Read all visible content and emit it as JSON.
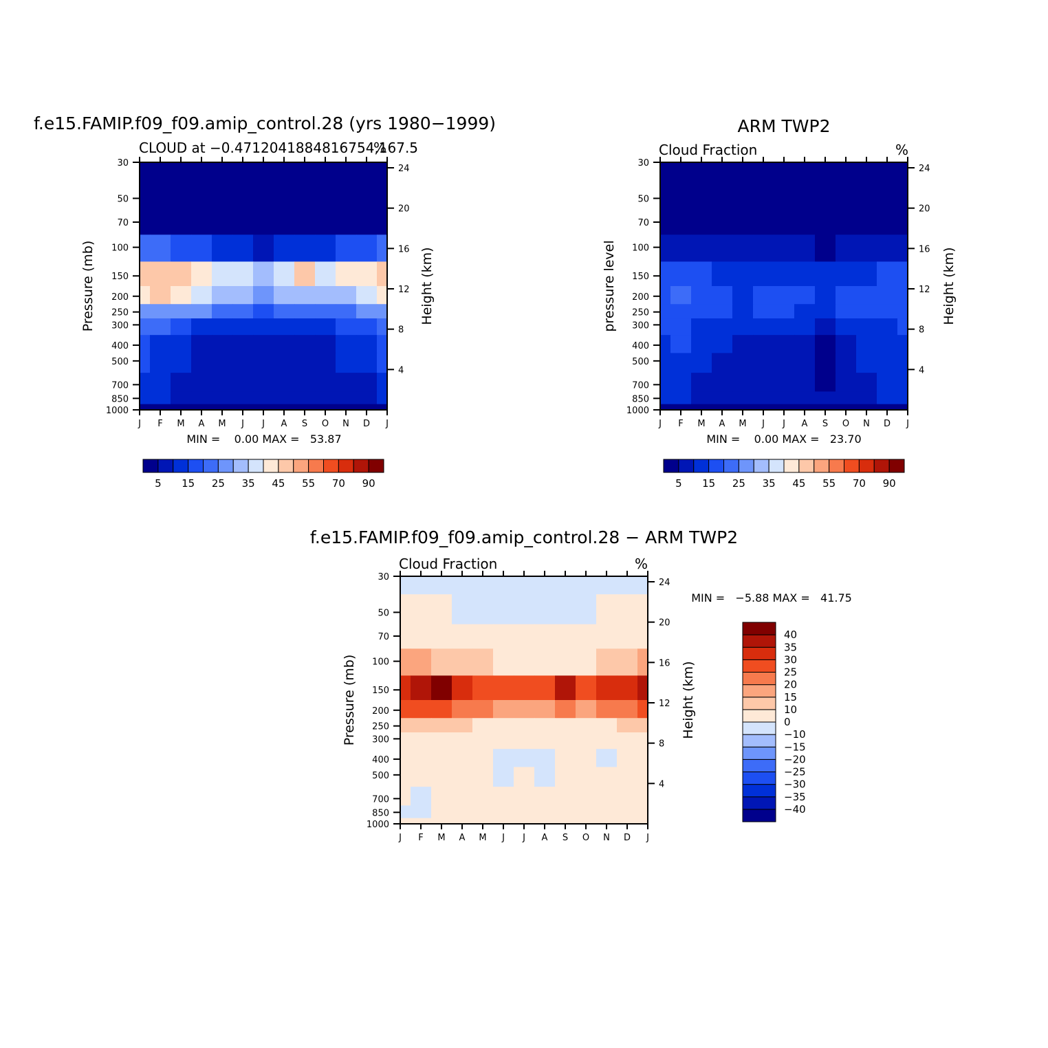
{
  "chart_data": [
    {
      "type": "heatmap",
      "title": "f.e15.FAMIP.f09_f09.amip_control.28 (yrs 1980−1999)",
      "left_string": "CLOUD at −0.4712041884816754,167.5",
      "right_string": "%",
      "ylabel": "Pressure (mb)",
      "ylabel_right": "Height (km)",
      "x_ticks": [
        "J",
        "F",
        "M",
        "A",
        "M",
        "J",
        "J",
        "A",
        "S",
        "O",
        "N",
        "D",
        "J"
      ],
      "y_ticks": [
        "30",
        "50",
        "70",
        "100",
        "150",
        "200",
        "250",
        "300",
        "400",
        "500",
        "700",
        "850",
        "1000"
      ],
      "y_ticks_right": [
        "24",
        "20",
        "16",
        "12",
        "8",
        "4"
      ],
      "min_max_text": "MIN =    0.00 MAX =   53.87",
      "levels": [
        5,
        10,
        15,
        20,
        25,
        30,
        35,
        40,
        45,
        50,
        55,
        60,
        70,
        80,
        90
      ],
      "colorbar_labels": [
        "5",
        "15",
        "25",
        "35",
        "45",
        "55",
        "70",
        "90"
      ],
      "x": [
        0,
        1,
        2,
        3,
        4,
        5,
        6,
        7,
        8,
        9,
        10,
        11,
        12
      ],
      "y": [
        30,
        50,
        70,
        100,
        150,
        200,
        250,
        300,
        400,
        500,
        700,
        850,
        1000
      ],
      "z": [
        [
          1,
          1,
          1,
          1,
          1,
          1,
          1,
          1,
          1,
          1,
          1,
          1,
          1
        ],
        [
          1,
          1,
          1,
          1,
          1,
          1,
          1,
          1,
          1,
          1,
          1,
          1,
          1
        ],
        [
          3,
          3,
          3,
          3,
          2,
          2,
          2,
          2,
          2,
          2,
          2,
          3,
          3
        ],
        [
          20,
          20,
          18,
          15,
          12,
          10,
          9,
          10,
          10,
          12,
          15,
          18,
          20
        ],
        [
          48,
          48,
          45,
          42,
          38,
          35,
          30,
          35,
          45,
          38,
          40,
          40,
          48
        ],
        [
          44,
          45,
          42,
          38,
          34,
          30,
          28,
          30,
          32,
          30,
          34,
          38,
          44
        ],
        [
          28,
          28,
          27,
          25,
          22,
          20,
          18,
          20,
          20,
          22,
          24,
          26,
          28
        ],
        [
          20,
          20,
          18,
          14,
          12,
          11,
          10,
          11,
          11,
          12,
          16,
          18,
          20
        ],
        [
          15,
          14,
          13,
          9,
          5,
          5,
          5,
          5,
          5,
          6,
          10,
          13,
          15
        ],
        [
          15,
          14,
          13,
          9,
          5,
          5,
          5,
          5,
          5,
          6,
          10,
          13,
          15
        ],
        [
          10,
          10,
          9,
          8,
          5,
          5,
          5,
          5,
          5,
          6,
          8,
          9,
          10
        ],
        [
          10,
          10,
          9,
          8,
          6,
          6,
          6,
          6,
          6,
          7,
          8,
          9,
          10
        ],
        [
          2,
          2,
          2,
          2,
          2,
          2,
          2,
          2,
          2,
          2,
          2,
          2,
          2
        ]
      ]
    },
    {
      "type": "heatmap",
      "title": "ARM TWP2",
      "left_string": "Cloud Fraction",
      "right_string": "%",
      "ylabel": "pressure level",
      "ylabel_right": "Height (km)",
      "x_ticks": [
        "J",
        "F",
        "M",
        "A",
        "M",
        "J",
        "J",
        "A",
        "S",
        "O",
        "N",
        "D",
        "J"
      ],
      "y_ticks": [
        "30",
        "50",
        "70",
        "100",
        "150",
        "200",
        "250",
        "300",
        "400",
        "500",
        "700",
        "850",
        "1000"
      ],
      "y_ticks_right": [
        "24",
        "20",
        "16",
        "12",
        "8",
        "4"
      ],
      "min_max_text": "MIN =    0.00 MAX =   23.70",
      "levels": [
        5,
        10,
        15,
        20,
        25,
        30,
        35,
        40,
        45,
        50,
        55,
        60,
        70,
        80,
        90
      ],
      "colorbar_labels": [
        "5",
        "15",
        "25",
        "35",
        "45",
        "55",
        "70",
        "90"
      ],
      "x": [
        0,
        1,
        2,
        3,
        4,
        5,
        6,
        7,
        8,
        9,
        10,
        11,
        12
      ],
      "y": [
        30,
        50,
        70,
        100,
        150,
        200,
        250,
        300,
        400,
        500,
        700,
        850,
        1000
      ],
      "z": [
        [
          1,
          1,
          1,
          1,
          1,
          1,
          1,
          1,
          1,
          1,
          1,
          1,
          1
        ],
        [
          1,
          1,
          1,
          1,
          1,
          1,
          1,
          1,
          1,
          1,
          1,
          1,
          1
        ],
        [
          2,
          2,
          2,
          2,
          2,
          2,
          2,
          2,
          2,
          2,
          2,
          2,
          2
        ],
        [
          9,
          8,
          7,
          6,
          5,
          5,
          5,
          5,
          4,
          5,
          6,
          7,
          9
        ],
        [
          16,
          17,
          15,
          14,
          12,
          14,
          13,
          12,
          12,
          13,
          14,
          15,
          16
        ],
        [
          18,
          20,
          17,
          16,
          14,
          17,
          17,
          15,
          14,
          16,
          17,
          16,
          18
        ],
        [
          17,
          18,
          16,
          15,
          14,
          15,
          15,
          14,
          13,
          15,
          16,
          16,
          17
        ],
        [
          15,
          16,
          14,
          14,
          12,
          13,
          13,
          12,
          8,
          12,
          14,
          14,
          15
        ],
        [
          14,
          15,
          12,
          10,
          8,
          9,
          9,
          9,
          4,
          8,
          12,
          13,
          14
        ],
        [
          13,
          14,
          12,
          9,
          8,
          8,
          8,
          8,
          4,
          8,
          10,
          12,
          13
        ],
        [
          12,
          10,
          8,
          7,
          6,
          7,
          7,
          7,
          4,
          6,
          8,
          10,
          12
        ],
        [
          12,
          10,
          9,
          8,
          8,
          8,
          8,
          8,
          7,
          8,
          9,
          10,
          12
        ],
        [
          2,
          2,
          2,
          2,
          2,
          2,
          2,
          2,
          2,
          2,
          2,
          2,
          2
        ]
      ]
    },
    {
      "type": "heatmap",
      "title": "f.e15.FAMIP.f09_f09.amip_control.28 − ARM TWP2",
      "left_string": "Cloud Fraction",
      "right_string": "%",
      "ylabel": "Pressure (mb)",
      "ylabel_right": "Height (km)",
      "x_ticks": [
        "J",
        "F",
        "M",
        "A",
        "M",
        "J",
        "J",
        "A",
        "S",
        "O",
        "N",
        "D",
        "J"
      ],
      "y_ticks": [
        "30",
        "50",
        "70",
        "100",
        "150",
        "200",
        "250",
        "300",
        "400",
        "500",
        "700",
        "850",
        "1000"
      ],
      "y_ticks_right": [
        "24",
        "20",
        "16",
        "12",
        "8",
        "4"
      ],
      "min_max_text": "MIN =   −5.88 MAX =   41.75",
      "levels": [
        -40,
        -35,
        -30,
        -25,
        -20,
        -15,
        -10,
        0,
        10,
        15,
        20,
        25,
        30,
        35,
        40
      ],
      "colorbar_labels": [
        "40",
        "35",
        "30",
        "25",
        "20",
        "15",
        "10",
        "0",
        "−10",
        "−15",
        "−20",
        "−25",
        "−30",
        "−35",
        "−40"
      ],
      "x": [
        0,
        1,
        2,
        3,
        4,
        5,
        6,
        7,
        8,
        9,
        10,
        11,
        12
      ],
      "y": [
        30,
        50,
        70,
        100,
        150,
        200,
        250,
        300,
        400,
        500,
        700,
        850,
        1000
      ],
      "z": [
        [
          -2,
          -2,
          -2,
          -2,
          -2,
          -2,
          -2,
          -2,
          -2,
          -2,
          -2,
          -2,
          -2
        ],
        [
          2,
          2,
          1,
          -1,
          -1,
          -1,
          -1,
          -1,
          -1,
          -1,
          1,
          2,
          2
        ],
        [
          5,
          4,
          3,
          1,
          1,
          1,
          1,
          1,
          2,
          2,
          3,
          4,
          5
        ],
        [
          16,
          16,
          14,
          12,
          10,
          9,
          9,
          9,
          9,
          9,
          12,
          14,
          16
        ],
        [
          34,
          36,
          40,
          32,
          28,
          28,
          28,
          28,
          38,
          28,
          30,
          32,
          36
        ],
        [
          28,
          28,
          26,
          24,
          20,
          18,
          18,
          18,
          20,
          18,
          20,
          24,
          28
        ],
        [
          14,
          14,
          12,
          10,
          8,
          7,
          7,
          7,
          8,
          7,
          8,
          10,
          14
        ],
        [
          8,
          8,
          6,
          5,
          4,
          3,
          3,
          3,
          4,
          3,
          4,
          6,
          8
        ],
        [
          4,
          4,
          2,
          1,
          1,
          -2,
          -1,
          -2,
          1,
          1,
          -2,
          1,
          4
        ],
        [
          3,
          2,
          1,
          1,
          1,
          -2,
          1,
          -1,
          1,
          1,
          1,
          1,
          3
        ],
        [
          2,
          -1,
          1,
          1,
          1,
          1,
          1,
          1,
          1,
          1,
          1,
          1,
          2
        ],
        [
          -1,
          -1,
          1,
          1,
          1,
          1,
          1,
          1,
          1,
          1,
          1,
          1,
          1
        ],
        [
          1,
          1,
          1,
          1,
          1,
          1,
          1,
          1,
          1,
          1,
          1,
          1,
          1
        ]
      ]
    }
  ],
  "palettes": {
    "abs": [
      "#00008c",
      "#0016b5",
      "#0030d8",
      "#1d4ff2",
      "#3d6cf8",
      "#6e95fb",
      "#a3bdfd",
      "#d4e4fc",
      "#fee9d7",
      "#fdc8a9",
      "#fba57e",
      "#f77a4d",
      "#f04d20",
      "#d82d0d",
      "#b01508",
      "#800000"
    ],
    "diff": [
      "#00008c",
      "#0016b5",
      "#0030d8",
      "#1d4ff2",
      "#3d6cf8",
      "#6e95fb",
      "#a3bdfd",
      "#d4e4fc",
      "#fee9d7",
      "#fdc8a9",
      "#fba57e",
      "#f77a4d",
      "#f04d20",
      "#d82d0d",
      "#b01508",
      "#800000"
    ]
  }
}
